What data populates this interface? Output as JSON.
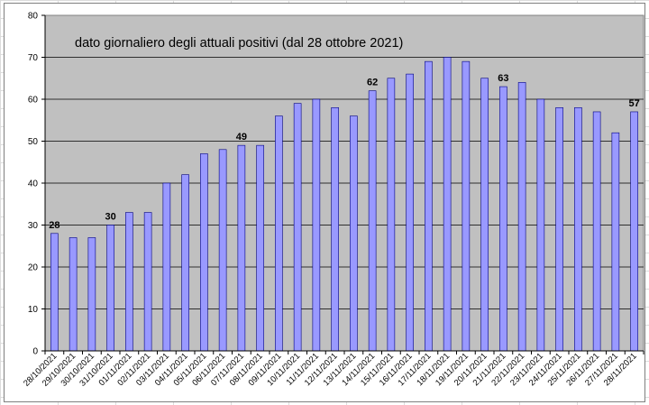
{
  "chart_data": {
    "type": "bar",
    "title": "dato giornaliero degli attuali positivi (dal 28 ottobre 2021)",
    "xlabel": "",
    "ylabel": "",
    "ylim": [
      0,
      80
    ],
    "yticks": [
      0,
      10,
      20,
      30,
      40,
      50,
      60,
      70,
      80
    ],
    "grid": true,
    "plot_background": "#c0c0c0",
    "bar_color": "#9999ff",
    "bar_edge_color": "#000080",
    "categories": [
      "28/10/2021",
      "29/10/2021",
      "30/10/2021",
      "31/10/2021",
      "01/11/2021",
      "02/11/2021",
      "03/11/2021",
      "04/11/2021",
      "05/11/2021",
      "06/11/2021",
      "07/11/2021",
      "08/11/2021",
      "09/11/2021",
      "10/11/2021",
      "11/11/2021",
      "12/11/2021",
      "13/11/2021",
      "14/11/2021",
      "15/11/2021",
      "16/11/2021",
      "17/11/2021",
      "18/11/2021",
      "19/11/2021",
      "20/11/2021",
      "21/11/2021",
      "22/11/2021",
      "23/11/2021",
      "24/11/2021",
      "25/11/2021",
      "26/11/2021",
      "27/11/2021",
      "28/11/2021"
    ],
    "values": [
      28,
      27,
      27,
      30,
      33,
      33,
      40,
      42,
      47,
      48,
      49,
      49,
      56,
      59,
      60,
      58,
      56,
      62,
      65,
      66,
      69,
      70,
      69,
      65,
      63,
      64,
      60,
      58,
      58,
      57,
      52,
      57
    ],
    "data_labels": [
      {
        "category": "28/10/2021",
        "text": "28"
      },
      {
        "category": "31/10/2021",
        "text": "30"
      },
      {
        "category": "07/11/2021",
        "text": "49"
      },
      {
        "category": "14/11/2021",
        "text": "62"
      },
      {
        "category": "21/11/2021",
        "text": "63"
      },
      {
        "category": "28/11/2021",
        "text": "57"
      }
    ]
  }
}
